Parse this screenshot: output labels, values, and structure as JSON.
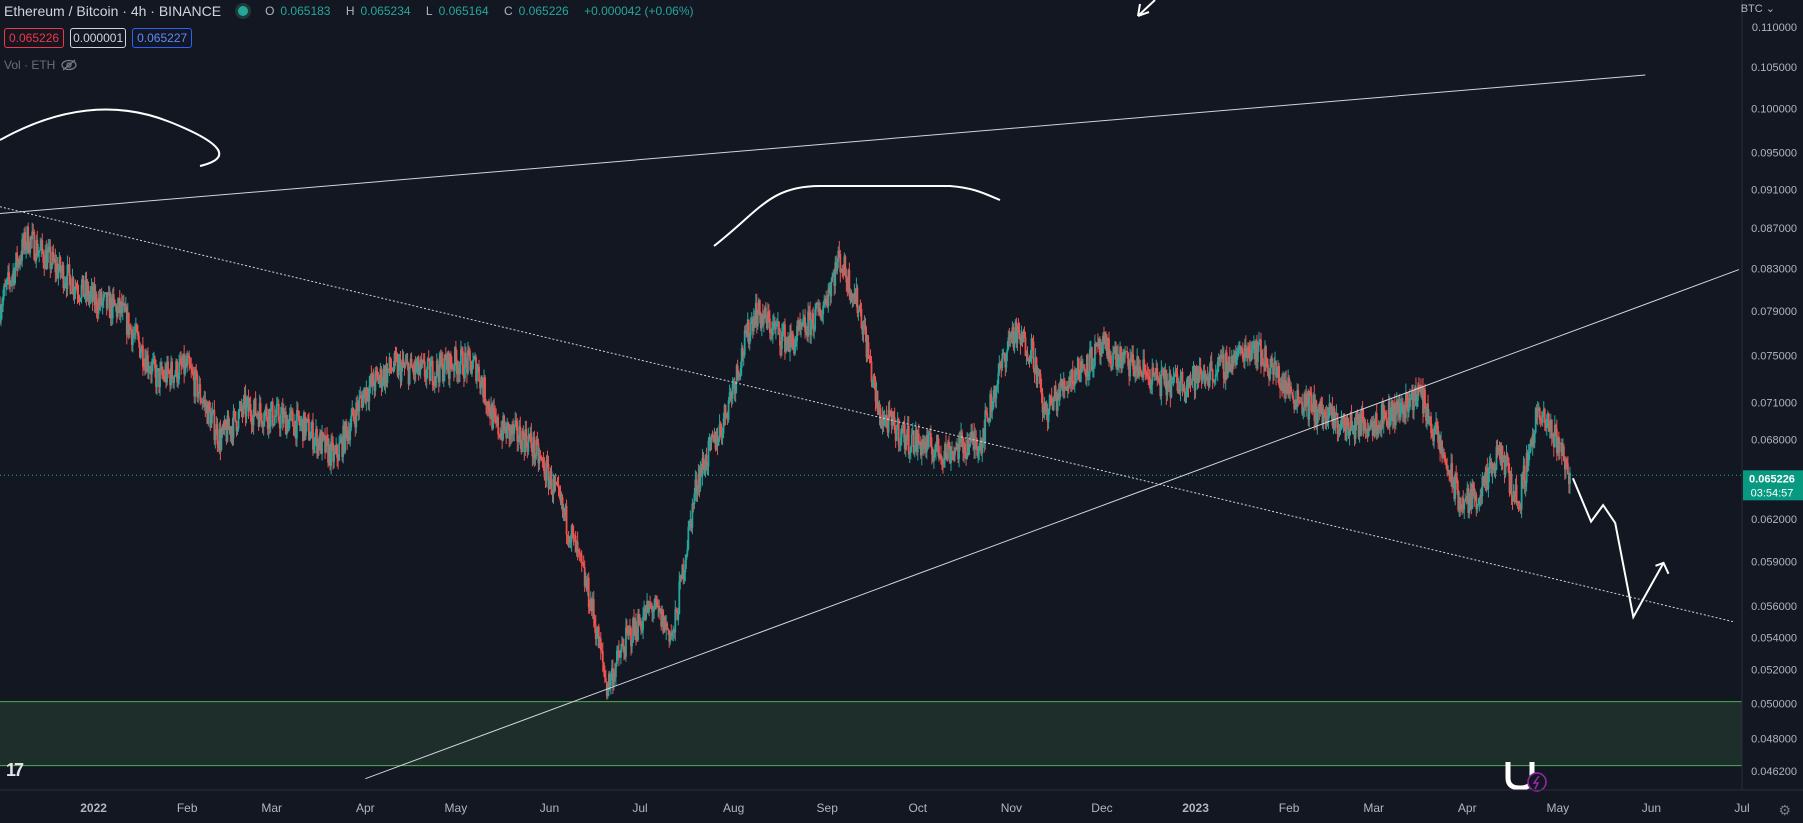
{
  "header": {
    "symbol": "Ethereum / Bitcoin · 4h · BINANCE",
    "ohlc": {
      "o_label": "O",
      "o": "0.065183",
      "h_label": "H",
      "h": "0.065234",
      "l_label": "L",
      "l": "0.065164",
      "c_label": "C",
      "c": "0.065226",
      "change": "+0.000042 (+0.06%)"
    },
    "bid": "0.065226",
    "spread": "0.000001",
    "ask": "0.065227",
    "volume_label": "Vol · ETH",
    "currency": "BTC"
  },
  "price_badge": {
    "price": "0.065226",
    "countdown": "03:54:57"
  },
  "colors": {
    "background": "#131722",
    "up": "#26a69a",
    "down": "#ef5350",
    "zone_fill": "#1e2f2b",
    "zone_border": "#4caf50",
    "drawing": "#ffffff"
  },
  "chart_data": {
    "type": "candlestick",
    "title": "Ethereum / Bitcoin · 4h · BINANCE",
    "y_axis": {
      "scale": "log",
      "ticks": [
        "0.110000",
        "0.105000",
        "0.100000",
        "0.095000",
        "0.091000",
        "0.087000",
        "0.083000",
        "0.079000",
        "0.075000",
        "0.071000",
        "0.068000",
        "0.062000",
        "0.059000",
        "0.056000",
        "0.054000",
        "0.052000",
        "0.050000",
        "0.048000",
        "0.046200"
      ],
      "range": [
        0.0452,
        0.1135
      ]
    },
    "x_axis": {
      "ticks": [
        "Dec",
        "2022",
        "Feb",
        "Mar",
        "Apr",
        "May",
        "Jun",
        "Jul",
        "Aug",
        "Sep",
        "Oct",
        "Nov",
        "Dec",
        "2023",
        "Feb",
        "Mar",
        "Apr",
        "May",
        "Jun",
        "Jul"
      ],
      "range": [
        "2021-12-01",
        "2023-07-01"
      ]
    },
    "close_path": [
      [
        "2021-12-01",
        0.0795
      ],
      [
        "2021-12-10",
        0.086
      ],
      [
        "2021-12-20",
        0.083
      ],
      [
        "2022-01-01",
        0.08
      ],
      [
        "2022-01-10",
        0.079
      ],
      [
        "2022-01-22",
        0.073
      ],
      [
        "2022-02-01",
        0.074
      ],
      [
        "2022-02-12",
        0.068
      ],
      [
        "2022-02-20",
        0.0705
      ],
      [
        "2022-03-01",
        0.07
      ],
      [
        "2022-03-12",
        0.069
      ],
      [
        "2022-03-22",
        0.0665
      ],
      [
        "2022-04-01",
        0.072
      ],
      [
        "2022-04-10",
        0.074
      ],
      [
        "2022-04-22",
        0.0735
      ],
      [
        "2022-05-01",
        0.0745
      ],
      [
        "2022-05-08",
        0.074
      ],
      [
        "2022-05-14",
        0.069
      ],
      [
        "2022-05-25",
        0.068
      ],
      [
        "2022-06-01",
        0.065
      ],
      [
        "2022-06-08",
        0.061
      ],
      [
        "2022-06-15",
        0.056
      ],
      [
        "2022-06-20",
        0.051
      ],
      [
        "2022-06-27",
        0.054
      ],
      [
        "2022-07-05",
        0.056
      ],
      [
        "2022-07-12",
        0.054
      ],
      [
        "2022-07-20",
        0.065
      ],
      [
        "2022-07-28",
        0.069
      ],
      [
        "2022-08-08",
        0.079
      ],
      [
        "2022-08-20",
        0.076
      ],
      [
        "2022-08-30",
        0.079
      ],
      [
        "2022-09-05",
        0.084
      ],
      [
        "2022-09-12",
        0.079
      ],
      [
        "2022-09-18",
        0.07
      ],
      [
        "2022-09-28",
        0.068
      ],
      [
        "2022-10-10",
        0.067
      ],
      [
        "2022-10-22",
        0.068
      ],
      [
        "2022-11-01",
        0.077
      ],
      [
        "2022-11-08",
        0.0755
      ],
      [
        "2022-11-12",
        0.07
      ],
      [
        "2022-11-20",
        0.073
      ],
      [
        "2022-12-01",
        0.0755
      ],
      [
        "2022-12-12",
        0.074
      ],
      [
        "2022-12-22",
        0.0725
      ],
      [
        "2023-01-01",
        0.073
      ],
      [
        "2023-01-10",
        0.074
      ],
      [
        "2023-01-20",
        0.076
      ],
      [
        "2023-02-01",
        0.072
      ],
      [
        "2023-02-12",
        0.07
      ],
      [
        "2023-02-20",
        0.069
      ],
      [
        "2023-03-01",
        0.0695
      ],
      [
        "2023-03-10",
        0.0705
      ],
      [
        "2023-03-16",
        0.072
      ],
      [
        "2023-03-22",
        0.068
      ],
      [
        "2023-03-30",
        0.063
      ],
      [
        "2023-04-06",
        0.064
      ],
      [
        "2023-04-12",
        0.067
      ],
      [
        "2023-04-18",
        0.063
      ],
      [
        "2023-04-24",
        0.07
      ],
      [
        "2023-05-01",
        0.068
      ],
      [
        "2023-05-05",
        0.0652
      ]
    ],
    "last_price": 0.065226,
    "support_zone": [
      0.0465,
      0.0501
    ],
    "trendlines": [
      {
        "style": "solid",
        "from": [
          "2021-12-01",
          0.0885
        ],
        "to": [
          "2023-05-30",
          0.104
        ]
      },
      {
        "style": "dotted",
        "from": [
          "2021-12-01",
          0.0892
        ],
        "to": [
          "2023-06-28",
          0.055
        ]
      },
      {
        "style": "solid",
        "from": [
          "2022-04-01",
          0.0458
        ],
        "to": [
          "2023-06-30",
          0.0829
        ]
      }
    ],
    "projection_path": [
      [
        "2023-05-06",
        0.065
      ],
      [
        "2023-05-12",
        0.0618
      ],
      [
        "2023-05-16",
        0.063
      ],
      [
        "2023-05-20",
        0.0617
      ],
      [
        "2023-05-26",
        0.0553
      ],
      [
        "2023-06-05",
        0.0589
      ]
    ],
    "grid": false
  }
}
